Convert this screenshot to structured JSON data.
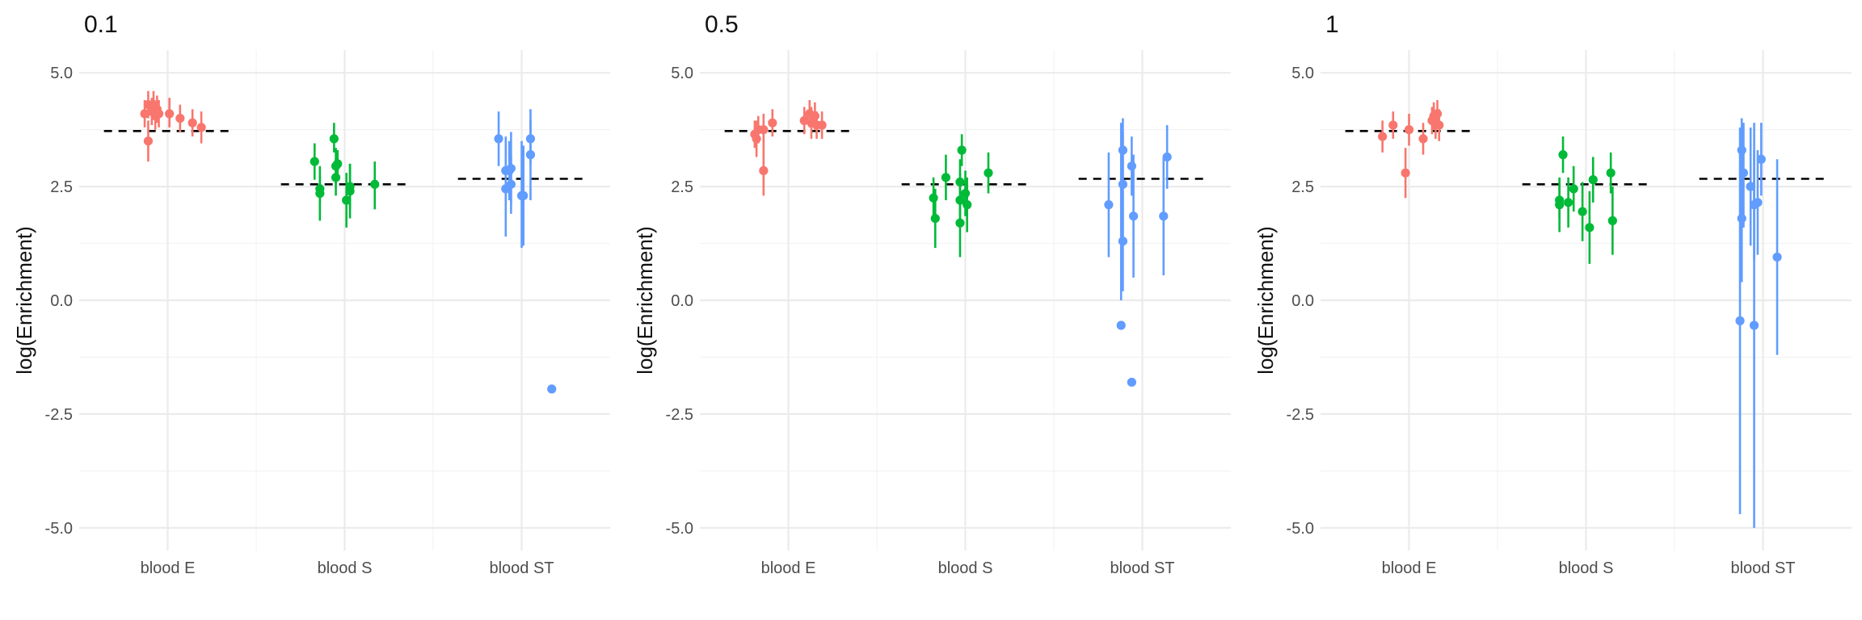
{
  "chart_data": [
    {
      "type": "scatter",
      "title": "0.1",
      "ylabel": "log(Enrichment)",
      "xlabel": "",
      "ylim": [
        -5.5,
        5.5
      ],
      "yticks": [
        5.0,
        2.5,
        0.0,
        -2.5,
        -5.0
      ],
      "ytick_labels": [
        "5.0",
        "2.5",
        "0.0",
        "-2.5",
        "-5.0"
      ],
      "categories": [
        "blood E",
        "blood S",
        "blood ST"
      ],
      "series": [
        {
          "name": "blood E",
          "color": "#F8766D",
          "mean": 3.72,
          "points": [
            {
              "x": -0.13,
              "y": 4.1,
              "lo": 3.8,
              "hi": 4.4
            },
            {
              "x": -0.11,
              "y": 4.3,
              "lo": 4.0,
              "hi": 4.6
            },
            {
              "x": -0.11,
              "y": 3.5,
              "lo": 3.05,
              "hi": 3.95
            },
            {
              "x": -0.09,
              "y": 4.15,
              "lo": 3.85,
              "hi": 4.45
            },
            {
              "x": -0.08,
              "y": 4.3,
              "lo": 4.0,
              "hi": 4.6
            },
            {
              "x": -0.07,
              "y": 4.05,
              "lo": 3.75,
              "hi": 4.35
            },
            {
              "x": -0.06,
              "y": 4.2,
              "lo": 3.9,
              "hi": 4.5
            },
            {
              "x": -0.05,
              "y": 4.1,
              "lo": 3.8,
              "hi": 4.4
            },
            {
              "x": 0.01,
              "y": 4.1,
              "lo": 3.8,
              "hi": 4.45
            },
            {
              "x": 0.07,
              "y": 4.0,
              "lo": 3.7,
              "hi": 4.3
            },
            {
              "x": 0.14,
              "y": 3.9,
              "lo": 3.6,
              "hi": 4.2
            },
            {
              "x": 0.19,
              "y": 3.8,
              "lo": 3.45,
              "hi": 4.15
            }
          ]
        },
        {
          "name": "blood S",
          "color": "#00BA38",
          "mean": 2.55,
          "points": [
            {
              "x": -0.17,
              "y": 3.05,
              "lo": 2.65,
              "hi": 3.45
            },
            {
              "x": -0.14,
              "y": 2.45,
              "lo": 2.15,
              "hi": 2.75
            },
            {
              "x": -0.14,
              "y": 2.35,
              "lo": 1.75,
              "hi": 2.95
            },
            {
              "x": -0.06,
              "y": 3.55,
              "lo": 3.25,
              "hi": 3.9
            },
            {
              "x": -0.05,
              "y": 2.95,
              "lo": 2.55,
              "hi": 3.35
            },
            {
              "x": -0.05,
              "y": 2.7,
              "lo": 2.3,
              "hi": 3.1
            },
            {
              "x": -0.04,
              "y": 3.0,
              "lo": 2.7,
              "hi": 3.3
            },
            {
              "x": 0.01,
              "y": 2.2,
              "lo": 1.6,
              "hi": 2.8
            },
            {
              "x": 0.03,
              "y": 2.4,
              "lo": 1.8,
              "hi": 3.0
            },
            {
              "x": 0.03,
              "y": 2.5,
              "lo": 2.0,
              "hi": 3.0
            },
            {
              "x": 0.17,
              "y": 2.55,
              "lo": 2.0,
              "hi": 3.05
            }
          ]
        },
        {
          "name": "blood ST",
          "color": "#619CFF",
          "mean": 2.67,
          "points": [
            {
              "x": -0.13,
              "y": 3.55,
              "lo": 2.95,
              "hi": 4.15
            },
            {
              "x": -0.09,
              "y": 2.45,
              "lo": 1.4,
              "hi": 3.5
            },
            {
              "x": -0.09,
              "y": 2.85,
              "lo": 2.1,
              "hi": 3.6
            },
            {
              "x": -0.07,
              "y": 2.85,
              "lo": 2.2,
              "hi": 3.5
            },
            {
              "x": -0.06,
              "y": 2.9,
              "lo": 2.1,
              "hi": 3.7
            },
            {
              "x": -0.06,
              "y": 2.55,
              "lo": 1.9,
              "hi": 3.2
            },
            {
              "x": 0.0,
              "y": 2.3,
              "lo": 1.15,
              "hi": 3.5
            },
            {
              "x": 0.01,
              "y": 2.3,
              "lo": 1.2,
              "hi": 3.4
            },
            {
              "x": 0.05,
              "y": 3.55,
              "lo": 3.0,
              "hi": 3.95
            },
            {
              "x": 0.05,
              "y": 3.2,
              "lo": 2.2,
              "hi": 4.2
            },
            {
              "x": 0.17,
              "y": -1.95,
              "lo": null,
              "hi": null
            }
          ]
        }
      ]
    },
    {
      "type": "scatter",
      "title": "0.5",
      "ylabel": "log(Enrichment)",
      "xlabel": "",
      "ylim": [
        -5.5,
        5.5
      ],
      "yticks": [
        5.0,
        2.5,
        0.0,
        -2.5,
        -5.0
      ],
      "ytick_labels": [
        "5.0",
        "2.5",
        "0.0",
        "-2.5",
        "-5.0"
      ],
      "categories": [
        "blood E",
        "blood S",
        "blood ST"
      ],
      "series": [
        {
          "name": "blood E",
          "color": "#F8766D",
          "mean": 3.72,
          "points": [
            {
              "x": -0.19,
              "y": 3.65,
              "lo": 3.35,
              "hi": 3.95
            },
            {
              "x": -0.18,
              "y": 3.55,
              "lo": 3.15,
              "hi": 3.95
            },
            {
              "x": -0.17,
              "y": 3.75,
              "lo": 3.45,
              "hi": 4.05
            },
            {
              "x": -0.14,
              "y": 2.85,
              "lo": 2.3,
              "hi": 3.4
            },
            {
              "x": -0.14,
              "y": 3.75,
              "lo": 3.4,
              "hi": 4.1
            },
            {
              "x": -0.09,
              "y": 3.9,
              "lo": 3.6,
              "hi": 4.2
            },
            {
              "x": 0.09,
              "y": 3.95,
              "lo": 3.65,
              "hi": 4.25
            },
            {
              "x": 0.12,
              "y": 4.1,
              "lo": 3.8,
              "hi": 4.4
            },
            {
              "x": 0.13,
              "y": 3.9,
              "lo": 3.55,
              "hi": 4.25
            },
            {
              "x": 0.15,
              "y": 4.05,
              "lo": 3.75,
              "hi": 4.35
            },
            {
              "x": 0.16,
              "y": 3.85,
              "lo": 3.55,
              "hi": 4.15
            },
            {
              "x": 0.19,
              "y": 3.85,
              "lo": 3.55,
              "hi": 4.15
            }
          ]
        },
        {
          "name": "blood S",
          "color": "#00BA38",
          "mean": 2.55,
          "points": [
            {
              "x": -0.18,
              "y": 2.25,
              "lo": 1.8,
              "hi": 2.7
            },
            {
              "x": -0.17,
              "y": 1.8,
              "lo": 1.15,
              "hi": 2.45
            },
            {
              "x": -0.11,
              "y": 2.7,
              "lo": 2.2,
              "hi": 3.2
            },
            {
              "x": -0.03,
              "y": 1.7,
              "lo": 0.95,
              "hi": 2.45
            },
            {
              "x": -0.03,
              "y": 2.6,
              "lo": 2.1,
              "hi": 3.1
            },
            {
              "x": -0.03,
              "y": 2.2,
              "lo": 1.6,
              "hi": 2.8
            },
            {
              "x": -0.02,
              "y": 3.3,
              "lo": 2.95,
              "hi": 3.65
            },
            {
              "x": 0.0,
              "y": 2.35,
              "lo": 1.85,
              "hi": 2.85
            },
            {
              "x": 0.01,
              "y": 2.1,
              "lo": 1.5,
              "hi": 2.7
            },
            {
              "x": 0.13,
              "y": 2.8,
              "lo": 2.35,
              "hi": 3.25
            }
          ]
        },
        {
          "name": "blood ST",
          "color": "#619CFF",
          "mean": 2.67,
          "points": [
            {
              "x": -0.19,
              "y": 2.1,
              "lo": 0.95,
              "hi": 3.25
            },
            {
              "x": -0.12,
              "y": -0.55,
              "lo": 0.0,
              "hi": 3.9
            },
            {
              "x": -0.11,
              "y": 3.3,
              "lo": 2.6,
              "hi": 4.0
            },
            {
              "x": -0.11,
              "y": 2.55,
              "lo": 1.4,
              "hi": 3.7
            },
            {
              "x": -0.11,
              "y": 1.3,
              "lo": 0.2,
              "hi": 2.4
            },
            {
              "x": -0.06,
              "y": 2.95,
              "lo": 2.3,
              "hi": 3.6
            },
            {
              "x": -0.06,
              "y": -1.8,
              "lo": null,
              "hi": null
            },
            {
              "x": -0.05,
              "y": 1.85,
              "lo": 0.5,
              "hi": 3.2
            },
            {
              "x": 0.12,
              "y": 1.85,
              "lo": 0.55,
              "hi": 3.15
            },
            {
              "x": 0.14,
              "y": 3.15,
              "lo": 2.45,
              "hi": 3.85
            }
          ]
        }
      ]
    },
    {
      "type": "scatter",
      "title": "1",
      "ylabel": "log(Enrichment)",
      "xlabel": "",
      "ylim": [
        -5.5,
        5.5
      ],
      "yticks": [
        5.0,
        2.5,
        0.0,
        -2.5,
        -5.0
      ],
      "ytick_labels": [
        "5.0",
        "2.5",
        "0.0",
        "-2.5",
        "-5.0"
      ],
      "categories": [
        "blood E",
        "blood S",
        "blood ST"
      ],
      "series": [
        {
          "name": "blood E",
          "color": "#F8766D",
          "mean": 3.72,
          "points": [
            {
              "x": -0.15,
              "y": 3.6,
              "lo": 3.25,
              "hi": 3.95
            },
            {
              "x": -0.09,
              "y": 3.85,
              "lo": 3.55,
              "hi": 4.15
            },
            {
              "x": -0.02,
              "y": 2.8,
              "lo": 2.25,
              "hi": 3.35
            },
            {
              "x": 0.0,
              "y": 3.75,
              "lo": 3.4,
              "hi": 4.1
            },
            {
              "x": 0.08,
              "y": 3.55,
              "lo": 3.2,
              "hi": 3.9
            },
            {
              "x": 0.13,
              "y": 3.95,
              "lo": 3.65,
              "hi": 4.25
            },
            {
              "x": 0.14,
              "y": 4.05,
              "lo": 3.75,
              "hi": 4.35
            },
            {
              "x": 0.15,
              "y": 3.85,
              "lo": 3.55,
              "hi": 4.15
            },
            {
              "x": 0.16,
              "y": 4.1,
              "lo": 3.8,
              "hi": 4.4
            },
            {
              "x": 0.17,
              "y": 3.85,
              "lo": 3.5,
              "hi": 4.2
            }
          ]
        },
        {
          "name": "blood S",
          "color": "#00BA38",
          "mean": 2.55,
          "points": [
            {
              "x": -0.15,
              "y": 2.2,
              "lo": 1.8,
              "hi": 2.6
            },
            {
              "x": -0.15,
              "y": 2.1,
              "lo": 1.5,
              "hi": 2.7
            },
            {
              "x": -0.13,
              "y": 3.2,
              "lo": 2.8,
              "hi": 3.6
            },
            {
              "x": -0.1,
              "y": 2.15,
              "lo": 1.6,
              "hi": 2.7
            },
            {
              "x": -0.07,
              "y": 2.45,
              "lo": 1.95,
              "hi": 2.95
            },
            {
              "x": -0.02,
              "y": 1.95,
              "lo": 1.3,
              "hi": 2.6
            },
            {
              "x": 0.02,
              "y": 1.6,
              "lo": 0.8,
              "hi": 2.4
            },
            {
              "x": 0.04,
              "y": 2.65,
              "lo": 2.15,
              "hi": 3.15
            },
            {
              "x": 0.14,
              "y": 2.8,
              "lo": 2.35,
              "hi": 3.25
            },
            {
              "x": 0.15,
              "y": 1.75,
              "lo": 1.0,
              "hi": 2.5
            }
          ]
        },
        {
          "name": "blood ST",
          "color": "#619CFF",
          "mean": 2.67,
          "points": [
            {
              "x": -0.13,
              "y": -0.45,
              "lo": -4.7,
              "hi": 3.8
            },
            {
              "x": -0.12,
              "y": 1.8,
              "lo": 0.4,
              "hi": 3.6
            },
            {
              "x": -0.12,
              "y": 3.3,
              "lo": 2.6,
              "hi": 4.0
            },
            {
              "x": -0.11,
              "y": 2.8,
              "lo": 1.6,
              "hi": 3.9
            },
            {
              "x": -0.07,
              "y": 2.5,
              "lo": 1.2,
              "hi": 3.8
            },
            {
              "x": -0.05,
              "y": -0.55,
              "lo": -5.0,
              "hi": 3.9
            },
            {
              "x": -0.05,
              "y": 2.1,
              "lo": 0.9,
              "hi": 3.3
            },
            {
              "x": -0.03,
              "y": 2.15,
              "lo": 1.0,
              "hi": 3.3
            },
            {
              "x": -0.01,
              "y": 3.1,
              "lo": 2.3,
              "hi": 3.9
            },
            {
              "x": 0.08,
              "y": 0.95,
              "lo": -1.2,
              "hi": 3.1
            }
          ]
        }
      ]
    }
  ]
}
